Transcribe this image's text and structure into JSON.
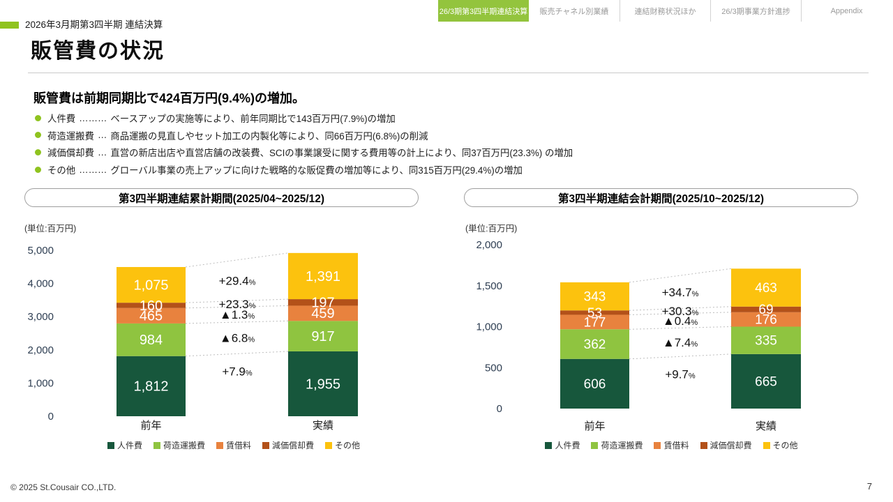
{
  "header": {
    "eyebrow": "2026年3月期第3四半期 連結決算",
    "title": "販管費の状況",
    "tabs": [
      {
        "label": "26/3期第3四半期連結決算",
        "active": true
      },
      {
        "label": "販売チャネル別業績",
        "active": false
      },
      {
        "label": "連結財務状況ほか",
        "active": false
      },
      {
        "label": "26/3期事業方針進捗",
        "active": false
      },
      {
        "label": "Appendix",
        "active": false
      }
    ]
  },
  "summary": {
    "headline": "販管費は前期同期比で424百万円(9.4%)の増加。",
    "bullets": [
      {
        "term": "人件費",
        "leader": "………",
        "desc": "ベースアップの実施等により、前年同期比で143百万円(7.9%)の増加"
      },
      {
        "term": "荷造運搬費",
        "leader": "…",
        "desc": "商品運搬の見直しやセット加工の内製化等により、同66百万円(6.8%)の削減"
      },
      {
        "term": "減価償却費",
        "leader": "…",
        "desc": "直営の新店出店や直営店舗の改装費、SCIの事業譲受に関する費用等の計上により、同37百万円(23.3%) の増加"
      },
      {
        "term": "その他",
        "leader": "………",
        "desc": "グローバル事業の売上アップに向けた戦略的な販促費の増加等により、同315百万円(29.4%)の増加"
      }
    ]
  },
  "colors": {
    "accent_green": "#8FC31F",
    "active_tab_green": "#93C43D",
    "axis_text": "#2E3E52",
    "connector_gray": "#BDBDBD",
    "value_label_white": "#FFFFFF"
  },
  "chart_data": [
    {
      "type": "bar",
      "stacked": true,
      "title": "第3四半期連結累計期間(2025/04~2025/12)",
      "unit_label": "(単位:百万円)",
      "categories": [
        "前年",
        "実績"
      ],
      "series": [
        {
          "name": "人件費",
          "color": "#17573C",
          "values": [
            1812,
            1955
          ]
        },
        {
          "name": "荷造運搬費",
          "color": "#8FC440",
          "values": [
            984,
            917
          ]
        },
        {
          "name": "賃借料",
          "color": "#E8823E",
          "values": [
            465,
            459
          ]
        },
        {
          "name": "減価償却費",
          "color": "#B35119",
          "values": [
            160,
            197
          ]
        },
        {
          "name": "その他",
          "color": "#FCC20E",
          "values": [
            1075,
            1391
          ]
        }
      ],
      "change_labels": [
        "+7.9%",
        "▲6.8%",
        "▲1.3%",
        "+23.3%",
        "+29.4%"
      ],
      "ylim": [
        0,
        5000
      ],
      "yticks": [
        0,
        1000,
        2000,
        3000,
        4000,
        5000
      ],
      "legend_position": "bottom",
      "grid": false
    },
    {
      "type": "bar",
      "stacked": true,
      "title": "第3四半期連結会計期間(2025/10~2025/12)",
      "unit_label": "(単位:百万円)",
      "categories": [
        "前年",
        "実績"
      ],
      "series": [
        {
          "name": "人件費",
          "color": "#17573C",
          "values": [
            606,
            665
          ]
        },
        {
          "name": "荷造運搬費",
          "color": "#8FC440",
          "values": [
            362,
            335
          ]
        },
        {
          "name": "賃借料",
          "color": "#E8823E",
          "values": [
            177,
            176
          ]
        },
        {
          "name": "減価償却費",
          "color": "#B35119",
          "values": [
            53,
            69
          ]
        },
        {
          "name": "その他",
          "color": "#FCC20E",
          "values": [
            343,
            463
          ]
        }
      ],
      "change_labels": [
        "+9.7%",
        "▲7.4%",
        "▲0.4%",
        "+30.3%",
        "+34.7%"
      ],
      "ylim": [
        0,
        2000
      ],
      "yticks": [
        0,
        500,
        1000,
        1500,
        2000
      ],
      "legend_position": "bottom",
      "grid": false
    }
  ],
  "footer": {
    "copyright": "© 2025 St.Cousair CO.,LTD.",
    "page": "7"
  }
}
